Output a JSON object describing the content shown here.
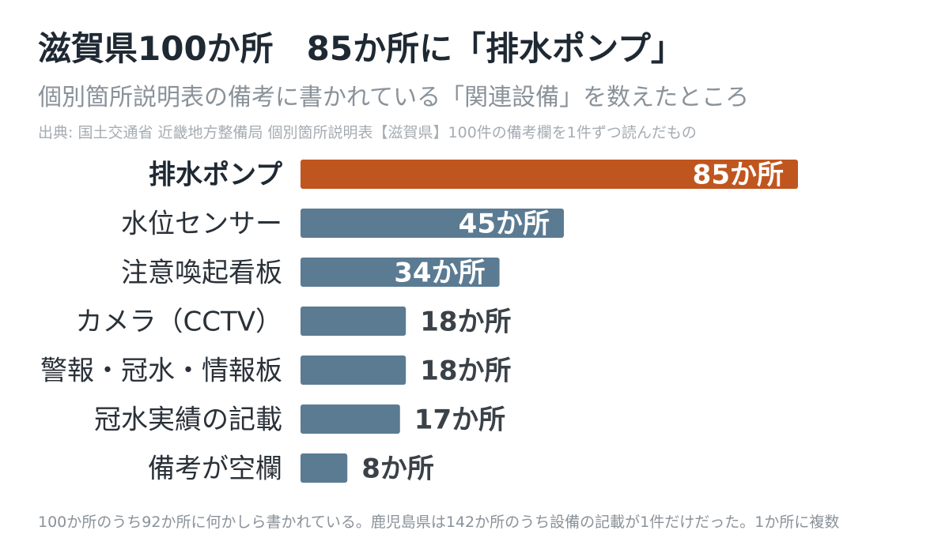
{
  "title": "滋賀県100か所　85か所に「排水ポンプ」",
  "subtitle": "個別箇所説明表の備考に書かれている「関連設備」を数えたところ",
  "source": "出典: 国土交通省 近畿地方整備局 個別箇所説明表【滋賀県】100件の備考欄を1件ずつ読んだもの",
  "footnote": "100か所のうち92か所に何かしら書かれている。鹿児島県は142か所のうち設備の記載が1件だけだった。1か所に複数",
  "colors": {
    "highlight": "#c0561f",
    "bar": "#5b7b93"
  },
  "chart_data": {
    "type": "bar",
    "orientation": "horizontal",
    "unit": "か所",
    "categories": [
      "排水ポンプ",
      "水位センサー",
      "注意喚起看板",
      "カメラ（CCTV）",
      "警報・冠水・情報板",
      "冠水実績の記載",
      "備考が空欄"
    ],
    "values": [
      85,
      45,
      34,
      18,
      18,
      17,
      8
    ],
    "value_labels": [
      "85か所",
      "45か所",
      "34か所",
      "18か所",
      "18か所",
      "17か所",
      "8か所"
    ],
    "highlight_index": 0,
    "xlim": [
      0,
      100
    ],
    "grid": false
  }
}
